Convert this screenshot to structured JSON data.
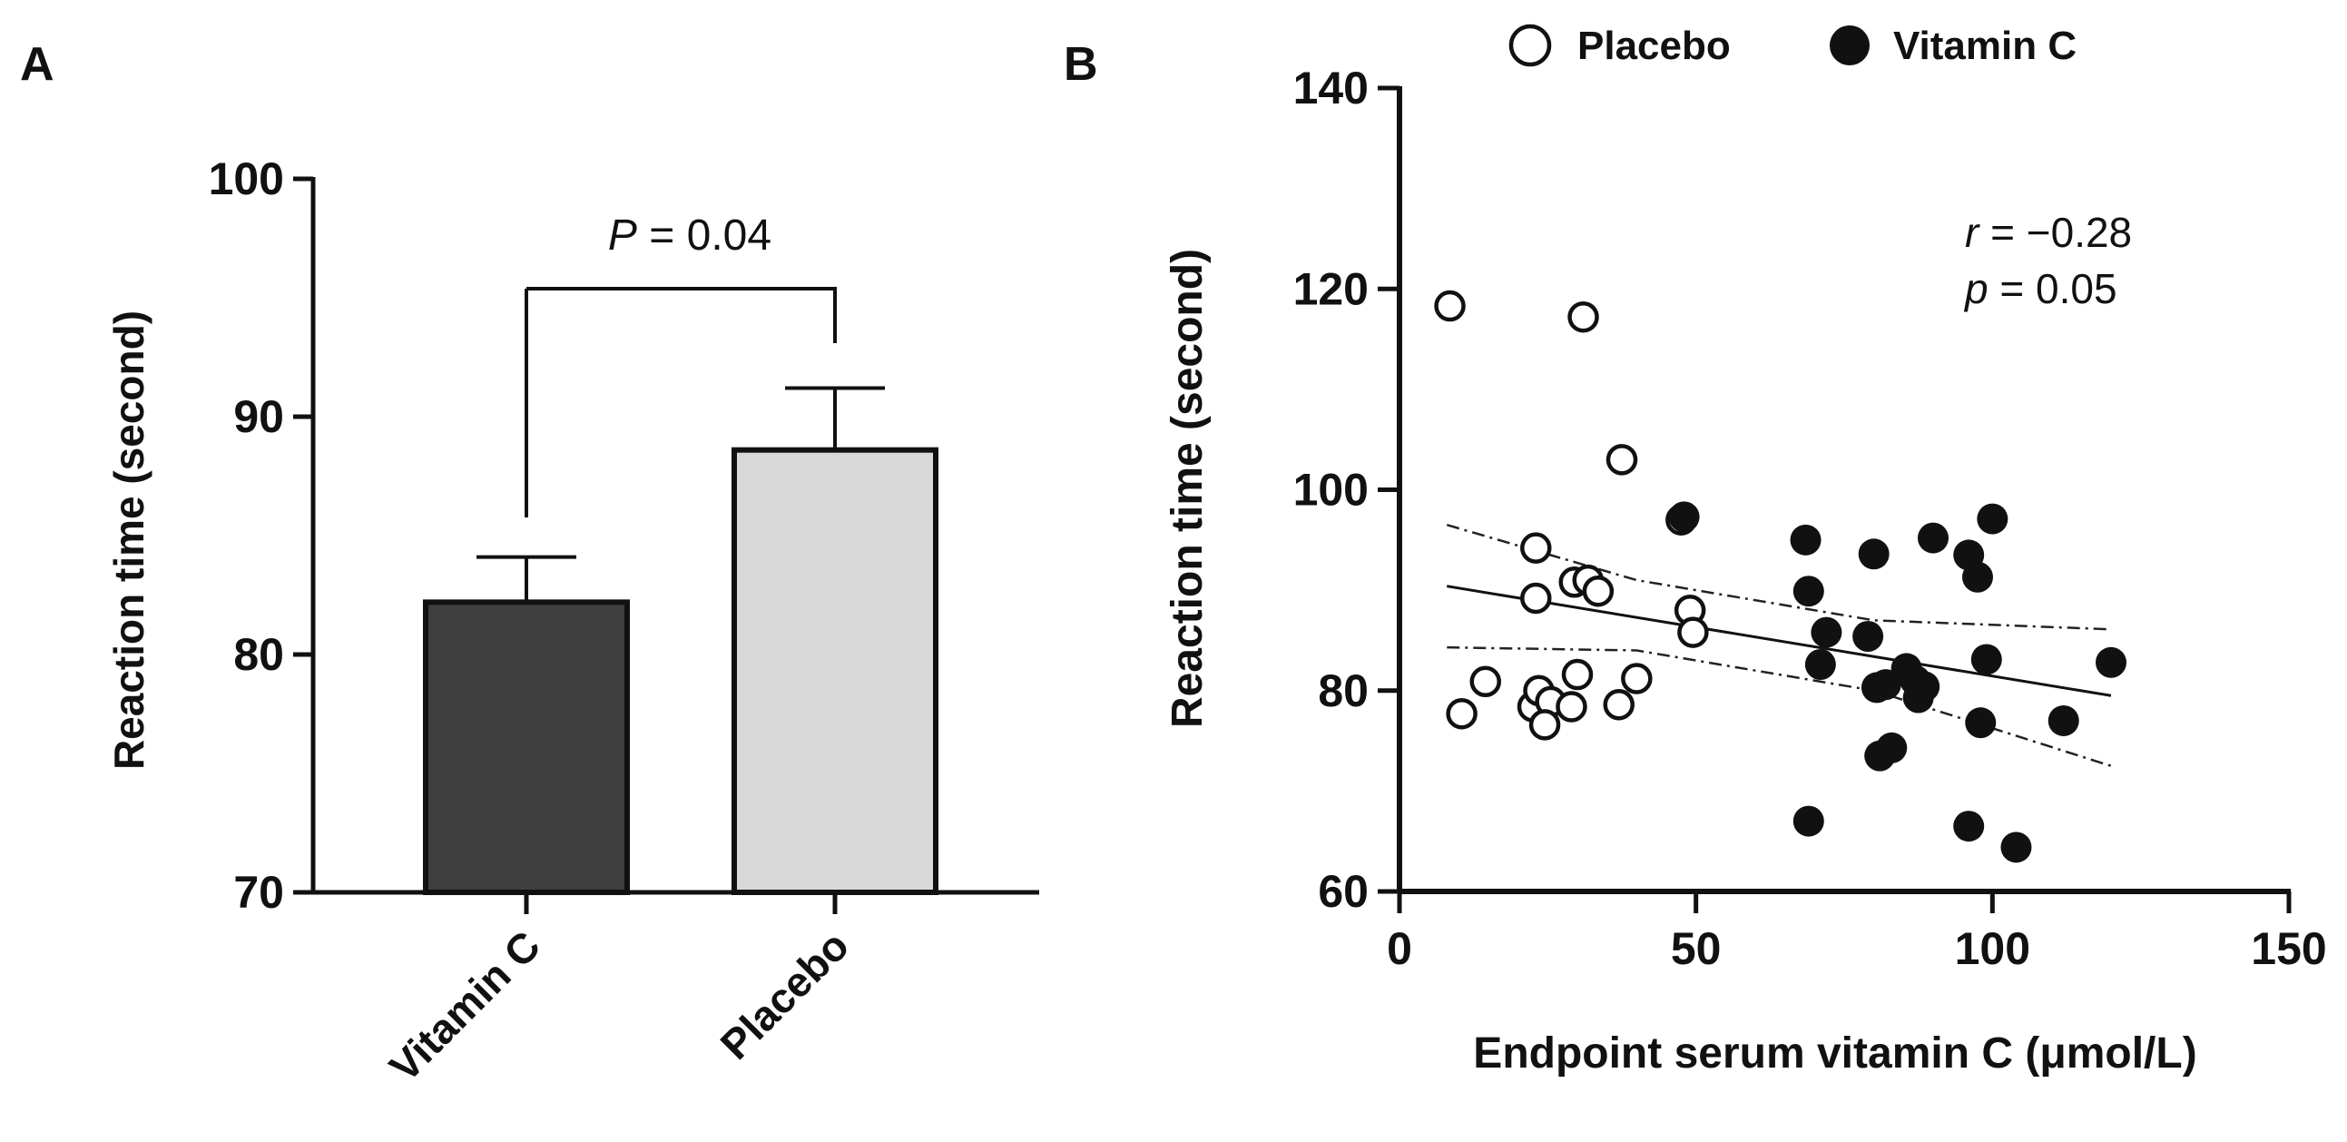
{
  "chart_data": [
    {
      "panel_label": "A",
      "type": "bar",
      "categories": [
        "Vitamin C",
        "Placebo"
      ],
      "values": [
        82.2,
        88.6
      ],
      "errors": [
        1.9,
        2.6
      ],
      "bar_colors": [
        "#3f3f3f",
        "#d9d9d9"
      ],
      "ylabel": "Reaction time (second)",
      "xlabel": "",
      "ylim": [
        70,
        100
      ],
      "yticks": [
        70,
        80,
        90,
        100
      ],
      "annotation": {
        "p_symbol": "P",
        "p_text": " = 0.04"
      }
    },
    {
      "panel_label": "B",
      "type": "scatter",
      "xlabel": "Endpoint serum vitamin C (μmol/L)",
      "ylabel": "Reaction time (second)",
      "xlim": [
        0,
        150
      ],
      "ylim": [
        60,
        140
      ],
      "xticks": [
        0,
        50,
        100,
        150
      ],
      "yticks": [
        60,
        80,
        100,
        120,
        140
      ],
      "legend": [
        {
          "name": "Placebo",
          "marker": "open-circle"
        },
        {
          "name": "Vitamin C",
          "marker": "filled-circle"
        }
      ],
      "annotation": {
        "r_symbol": "r",
        "r_text": " = −0.28",
        "p_symbol": "p",
        "p_text": " = 0.05"
      },
      "series": [
        {
          "name": "Placebo",
          "marker": "open",
          "points": [
            [
              8.5,
              118.3
            ],
            [
              31,
              117.2
            ],
            [
              37.5,
              103
            ],
            [
              47.5,
              97
            ],
            [
              23,
              94.2
            ],
            [
              23,
              89.2
            ],
            [
              29.5,
              90.8
            ],
            [
              31.8,
              91
            ],
            [
              33.5,
              89.9
            ],
            [
              49,
              88
            ],
            [
              49.5,
              85.8
            ],
            [
              10.5,
              77.7
            ],
            [
              14.5,
              80.9
            ],
            [
              22.5,
              78.4
            ],
            [
              23.5,
              80
            ],
            [
              25.5,
              78.9
            ],
            [
              24.5,
              76.6
            ],
            [
              29,
              78.4
            ],
            [
              30,
              81.6
            ],
            [
              37,
              78.6
            ],
            [
              40,
              81.2
            ]
          ]
        },
        {
          "name": "Vitamin C",
          "marker": "filled",
          "points": [
            [
              48,
              97.3
            ],
            [
              68.5,
              95
            ],
            [
              69,
              89.9
            ],
            [
              72,
              85.8
            ],
            [
              71,
              82.6
            ],
            [
              69,
              67
            ],
            [
              79,
              85.4
            ],
            [
              80,
              93.6
            ],
            [
              80.5,
              80.3
            ],
            [
              82,
              80.6
            ],
            [
              81,
              73.5
            ],
            [
              83,
              74.3
            ],
            [
              85.5,
              82.2
            ],
            [
              87,
              81
            ],
            [
              87.5,
              79.3
            ],
            [
              88.5,
              80.4
            ],
            [
              90,
              95.2
            ],
            [
              96,
              93.5
            ],
            [
              97.5,
              91.3
            ],
            [
              99,
              83.1
            ],
            [
              100,
              97.1
            ],
            [
              98,
              76.8
            ],
            [
              96,
              66.5
            ],
            [
              104,
              64.4
            ],
            [
              112,
              77
            ],
            [
              120,
              82.8
            ]
          ]
        }
      ],
      "regression": {
        "x": [
          8,
          120
        ],
        "y": [
          90.4,
          79.5
        ]
      },
      "confidence_band": {
        "upper": {
          "x": [
            8,
            40,
            80,
            120
          ],
          "y": [
            96.5,
            91,
            87,
            86.1
          ]
        },
        "lower": {
          "x": [
            8,
            40,
            80,
            120
          ],
          "y": [
            84.3,
            84,
            80,
            72.5
          ]
        }
      }
    }
  ]
}
